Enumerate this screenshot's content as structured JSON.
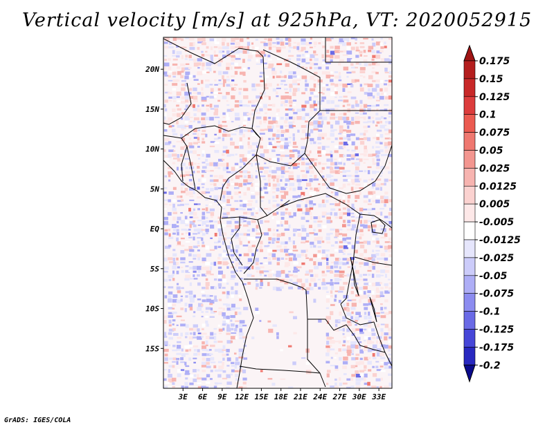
{
  "title": "Vertical velocity [m/s] at 925hPa, VT: 2020052915",
  "footer": "GrADS: IGES/COLA",
  "map": {
    "lon_range": [
      0,
      35
    ],
    "lat_range": [
      -20,
      24
    ],
    "lat_ticks": [
      {
        "value": 20,
        "label": "20N"
      },
      {
        "value": 15,
        "label": "15N"
      },
      {
        "value": 10,
        "label": "10N"
      },
      {
        "value": 5,
        "label": "5N"
      },
      {
        "value": 0,
        "label": "EQ"
      },
      {
        "value": -5,
        "label": "5S"
      },
      {
        "value": -10,
        "label": "10S"
      },
      {
        "value": -15,
        "label": "15S"
      }
    ],
    "lon_ticks": [
      {
        "value": 3,
        "label": "3E"
      },
      {
        "value": 6,
        "label": "6E"
      },
      {
        "value": 9,
        "label": "9E"
      },
      {
        "value": 12,
        "label": "12E"
      },
      {
        "value": 15,
        "label": "15E"
      },
      {
        "value": 18,
        "label": "18E"
      },
      {
        "value": 21,
        "label": "21E"
      },
      {
        "value": 24,
        "label": "24E"
      },
      {
        "value": 27,
        "label": "27E"
      },
      {
        "value": 30,
        "label": "30E"
      },
      {
        "value": 33,
        "label": "33E"
      }
    ]
  },
  "colorbar": {
    "levels": [
      {
        "label": "0.175",
        "color": "#b41e1e"
      },
      {
        "label": "0.15",
        "color": "#c82828"
      },
      {
        "label": "0.125",
        "color": "#dc3c3c"
      },
      {
        "label": "0.1",
        "color": "#eb5a50"
      },
      {
        "label": "0.075",
        "color": "#ef7870"
      },
      {
        "label": "0.05",
        "color": "#f39690"
      },
      {
        "label": "0.025",
        "color": "#f7b4b0"
      },
      {
        "label": "0.0125",
        "color": "#fbd2d0"
      },
      {
        "label": "0.005",
        "color": "#fde8e8"
      },
      {
        "label": "-0.005",
        "color": "#ffffff"
      },
      {
        "label": "-0.0125",
        "color": "#e6e6fc"
      },
      {
        "label": "-0.025",
        "color": "#ccccfa"
      },
      {
        "label": "-0.05",
        "color": "#aeaef6"
      },
      {
        "label": "-0.075",
        "color": "#8c8cf0"
      },
      {
        "label": "-0.1",
        "color": "#6a6ae6"
      },
      {
        "label": "-0.125",
        "color": "#4646d8"
      },
      {
        "label": "-0.175",
        "color": "#2828c0"
      },
      {
        "label": "-0.2",
        "color": "#1010a0"
      }
    ],
    "top_color": "#a01414",
    "bottom_color": "#0a0a8c"
  }
}
